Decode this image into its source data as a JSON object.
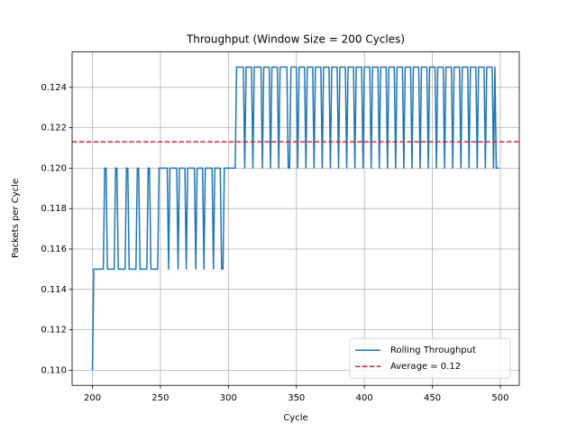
{
  "chart_data": {
    "type": "line",
    "title": "Throughput (Window Size = 200 Cycles)",
    "x_label": "Cycle",
    "y_label": "Packets per Cycle",
    "x": [
      200,
      201,
      202,
      203,
      204,
      205,
      206,
      207,
      208,
      209,
      210,
      211,
      212,
      213,
      214,
      215,
      216,
      217,
      218,
      219,
      220,
      221,
      222,
      223,
      224,
      225,
      226,
      227,
      228,
      229,
      230,
      231,
      232,
      233,
      234,
      235,
      236,
      237,
      238,
      239,
      240,
      241,
      242,
      243,
      244,
      245,
      246,
      247,
      248,
      249,
      250,
      251,
      252,
      253,
      254,
      255,
      256,
      257,
      258,
      259,
      260,
      261,
      262,
      263,
      264,
      265,
      266,
      267,
      268,
      269,
      270,
      271,
      272,
      273,
      274,
      275,
      276,
      277,
      278,
      279,
      280,
      281,
      282,
      283,
      284,
      285,
      286,
      287,
      288,
      289,
      290,
      291,
      292,
      293,
      294,
      295,
      296,
      297,
      298,
      299,
      300,
      301,
      302,
      303,
      304,
      305,
      306,
      307,
      308,
      309,
      310,
      311,
      312,
      313,
      314,
      315,
      316,
      317,
      318,
      319,
      320,
      321,
      322,
      323,
      324,
      325,
      326,
      327,
      328,
      329,
      330,
      331,
      332,
      333,
      334,
      335,
      336,
      337,
      338,
      339,
      340,
      341,
      342,
      343,
      344,
      345,
      346,
      347,
      348,
      349,
      350,
      351,
      352,
      353,
      354,
      355,
      356,
      357,
      358,
      359,
      360,
      361,
      362,
      363,
      364,
      365,
      366,
      367,
      368,
      369,
      370,
      371,
      372,
      373,
      374,
      375,
      376,
      377,
      378,
      379,
      380,
      381,
      382,
      383,
      384,
      385,
      386,
      387,
      388,
      389,
      390,
      391,
      392,
      393,
      394,
      395,
      396,
      397,
      398,
      399,
      400,
      401,
      402,
      403,
      404,
      405,
      406,
      407,
      408,
      409,
      410,
      411,
      412,
      413,
      414,
      415,
      416,
      417,
      418,
      419,
      420,
      421,
      422,
      423,
      424,
      425,
      426,
      427,
      428,
      429,
      430,
      431,
      432,
      433,
      434,
      435,
      436,
      437,
      438,
      439,
      440,
      441,
      442,
      443,
      444,
      445,
      446,
      447,
      448,
      449,
      450,
      451,
      452,
      453,
      454,
      455,
      456,
      457,
      458,
      459,
      460,
      461,
      462,
      463,
      464,
      465,
      466,
      467,
      468,
      469,
      470,
      471,
      472,
      473,
      474,
      475,
      476,
      477,
      478,
      479,
      480,
      481,
      482,
      483,
      484,
      485,
      486,
      487,
      488,
      489,
      490,
      491,
      492,
      493,
      494,
      495,
      496,
      497,
      498,
      499
    ],
    "series": [
      {
        "name": "Rolling Throughput",
        "color": "#1f77b4",
        "values": [
          0.11,
          0.115,
          0.115,
          0.115,
          0.115,
          0.115,
          0.115,
          0.115,
          0.115,
          0.12,
          0.12,
          0.115,
          0.115,
          0.115,
          0.115,
          0.115,
          0.115,
          0.12,
          0.12,
          0.115,
          0.115,
          0.115,
          0.115,
          0.115,
          0.115,
          0.12,
          0.12,
          0.115,
          0.115,
          0.115,
          0.115,
          0.115,
          0.115,
          0.12,
          0.12,
          0.115,
          0.115,
          0.115,
          0.115,
          0.115,
          0.115,
          0.12,
          0.12,
          0.115,
          0.115,
          0.115,
          0.115,
          0.115,
          0.115,
          0.12,
          0.12,
          0.12,
          0.12,
          0.12,
          0.12,
          0.12,
          0.115,
          0.12,
          0.12,
          0.12,
          0.12,
          0.12,
          0.12,
          0.115,
          0.12,
          0.12,
          0.12,
          0.12,
          0.12,
          0.115,
          0.12,
          0.12,
          0.12,
          0.12,
          0.12,
          0.12,
          0.115,
          0.12,
          0.12,
          0.12,
          0.12,
          0.12,
          0.115,
          0.12,
          0.12,
          0.12,
          0.12,
          0.12,
          0.12,
          0.115,
          0.12,
          0.12,
          0.12,
          0.12,
          0.12,
          0.115,
          0.115,
          0.12,
          0.12,
          0.12,
          0.12,
          0.12,
          0.12,
          0.12,
          0.12,
          0.12,
          0.125,
          0.125,
          0.125,
          0.125,
          0.125,
          0.125,
          0.12,
          0.125,
          0.125,
          0.125,
          0.125,
          0.125,
          0.12,
          0.125,
          0.125,
          0.125,
          0.125,
          0.125,
          0.125,
          0.12,
          0.125,
          0.125,
          0.125,
          0.125,
          0.125,
          0.12,
          0.125,
          0.125,
          0.125,
          0.125,
          0.125,
          0.12,
          0.125,
          0.125,
          0.125,
          0.125,
          0.125,
          0.125,
          0.12,
          0.12,
          0.125,
          0.125,
          0.125,
          0.125,
          0.125,
          0.12,
          0.125,
          0.125,
          0.125,
          0.125,
          0.125,
          0.12,
          0.125,
          0.125,
          0.125,
          0.125,
          0.125,
          0.12,
          0.125,
          0.125,
          0.125,
          0.125,
          0.125,
          0.12,
          0.125,
          0.125,
          0.125,
          0.125,
          0.125,
          0.12,
          0.125,
          0.125,
          0.125,
          0.125,
          0.125,
          0.12,
          0.125,
          0.125,
          0.125,
          0.125,
          0.125,
          0.12,
          0.125,
          0.125,
          0.125,
          0.125,
          0.125,
          0.12,
          0.125,
          0.125,
          0.125,
          0.125,
          0.125,
          0.12,
          0.125,
          0.125,
          0.125,
          0.125,
          0.125,
          0.12,
          0.125,
          0.125,
          0.125,
          0.125,
          0.125,
          0.12,
          0.125,
          0.125,
          0.125,
          0.125,
          0.125,
          0.12,
          0.125,
          0.125,
          0.125,
          0.125,
          0.125,
          0.12,
          0.125,
          0.125,
          0.125,
          0.125,
          0.125,
          0.12,
          0.125,
          0.125,
          0.125,
          0.125,
          0.125,
          0.12,
          0.125,
          0.125,
          0.125,
          0.125,
          0.125,
          0.12,
          0.125,
          0.125,
          0.125,
          0.125,
          0.125,
          0.12,
          0.125,
          0.125,
          0.125,
          0.125,
          0.125,
          0.12,
          0.125,
          0.125,
          0.125,
          0.125,
          0.125,
          0.12,
          0.125,
          0.125,
          0.125,
          0.125,
          0.125,
          0.12,
          0.125,
          0.125,
          0.125,
          0.125,
          0.125,
          0.12,
          0.125,
          0.125,
          0.125,
          0.125,
          0.125,
          0.12,
          0.125,
          0.125,
          0.125,
          0.125,
          0.125,
          0.12,
          0.125,
          0.125,
          0.125,
          0.125,
          0.125,
          0.12,
          0.125,
          0.125,
          0.125,
          0.125,
          0.125,
          0.12,
          0.125,
          0.12,
          0.12,
          0.12
        ]
      }
    ],
    "hlines": [
      {
        "name": "Average = 0.12",
        "color": "#d62728",
        "value": 0.1213,
        "dashed": true
      }
    ],
    "xlim": [
      185.05,
      513.95
    ],
    "ylim": [
      0.10925,
      0.12575
    ],
    "xticks": [
      200,
      250,
      300,
      350,
      400,
      450,
      500
    ],
    "yticks": [
      {
        "value": 0.11,
        "label": "0.110"
      },
      0.112,
      0.114,
      0.116,
      0.118,
      {
        "value": 0.12,
        "label": "0.120"
      },
      0.122,
      0.124
    ],
    "grid": true,
    "legend": "lower right"
  }
}
